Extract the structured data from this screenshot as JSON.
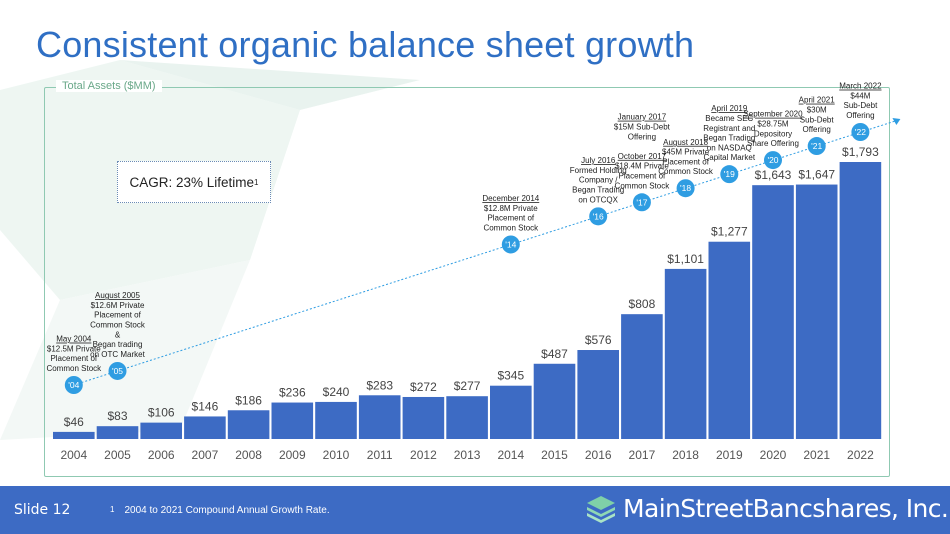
{
  "slide": {
    "title": "Consistent organic balance sheet growth",
    "frame_label": "Total Assets ($MM)",
    "cagr_text": "CAGR: 23% Lifetime",
    "cagr_sup": "1",
    "slide_number": "Slide 12",
    "footnote_marker": "1",
    "footnote_text": "2004 to 2021 Compound Annual Growth Rate.",
    "logo_text": "MainStreetBancshares, Inc."
  },
  "colors": {
    "title": "#2f6fc4",
    "bar": "#3d6bc4",
    "footer": "#3d6bc4",
    "frame": "#8fc9b2",
    "milestone_circle": "#2f9de2",
    "trend_line": "#2f9de2"
  },
  "chart_data": {
    "type": "bar",
    "title": "Total Assets ($MM)",
    "categories": [
      "2004",
      "2005",
      "2006",
      "2007",
      "2008",
      "2009",
      "2010",
      "2011",
      "2012",
      "2013",
      "2014",
      "2015",
      "2016",
      "2017",
      "2018",
      "2019",
      "2020",
      "2021",
      "2022"
    ],
    "values": [
      46,
      83,
      106,
      146,
      186,
      236,
      240,
      283,
      272,
      277,
      345,
      487,
      576,
      808,
      1101,
      1277,
      1643,
      1647,
      1793
    ],
    "value_labels": [
      "$46",
      "$83",
      "$106",
      "$146",
      "$186",
      "$236",
      "$240",
      "$283",
      "$272",
      "$277",
      "$345",
      "$487",
      "$576",
      "$808",
      "$1,101",
      "$1,277",
      "$1,643",
      "$1,647",
      "$1,793"
    ],
    "ylim": [
      0,
      1793
    ],
    "grid": false,
    "milestones": [
      {
        "label": "'04",
        "year": "2004",
        "title": "May 2004",
        "lines": [
          "$12.5M Private",
          "Placement of",
          "Common Stock"
        ]
      },
      {
        "label": "'05",
        "year": "2005",
        "title": "August 2005",
        "lines": [
          "$12.6M Private",
          "Placement of",
          "Common Stock",
          "&",
          "Began trading",
          "on OTC Market"
        ]
      },
      {
        "label": "'14",
        "year": "2014",
        "title": "December 2014",
        "lines": [
          "$12.8M Private",
          "Placement of",
          "Common Stock"
        ]
      },
      {
        "label": "'16",
        "year": "2016",
        "title": "July 2016",
        "lines": [
          "Formed Holding",
          "Company /",
          "Began Trading",
          "on OTCQX"
        ]
      },
      {
        "label": "'17",
        "year": "2017",
        "title": "January 2017",
        "lines": [
          "$15M Sub-Debt",
          "Offering"
        ],
        "title2": "October 2017",
        "lines2": [
          "$18.4M Private",
          "Placement of",
          "Common Stock"
        ]
      },
      {
        "label": "'18",
        "year": "2018",
        "title": "August 2018",
        "lines": [
          "$45M Private",
          "Placement of",
          "Common Stock"
        ]
      },
      {
        "label": "'19",
        "year": "2019",
        "title": "April 2019",
        "lines": [
          "Became SEC",
          "Registrant and",
          "Began Trading",
          "on NASDAQ",
          "Capital Market"
        ]
      },
      {
        "label": "'20",
        "year": "2020",
        "title": "September 2020",
        "lines": [
          "$28.75M",
          "Depository",
          "Share Offering"
        ]
      },
      {
        "label": "'21",
        "year": "2021",
        "title": "April 2021",
        "lines": [
          "$30M",
          "Sub-Debt",
          "Offering"
        ]
      },
      {
        "label": "'22",
        "year": "2022",
        "title": "March 2022",
        "lines": [
          "$44M",
          "Sub-Debt",
          "Offering"
        ]
      }
    ]
  }
}
